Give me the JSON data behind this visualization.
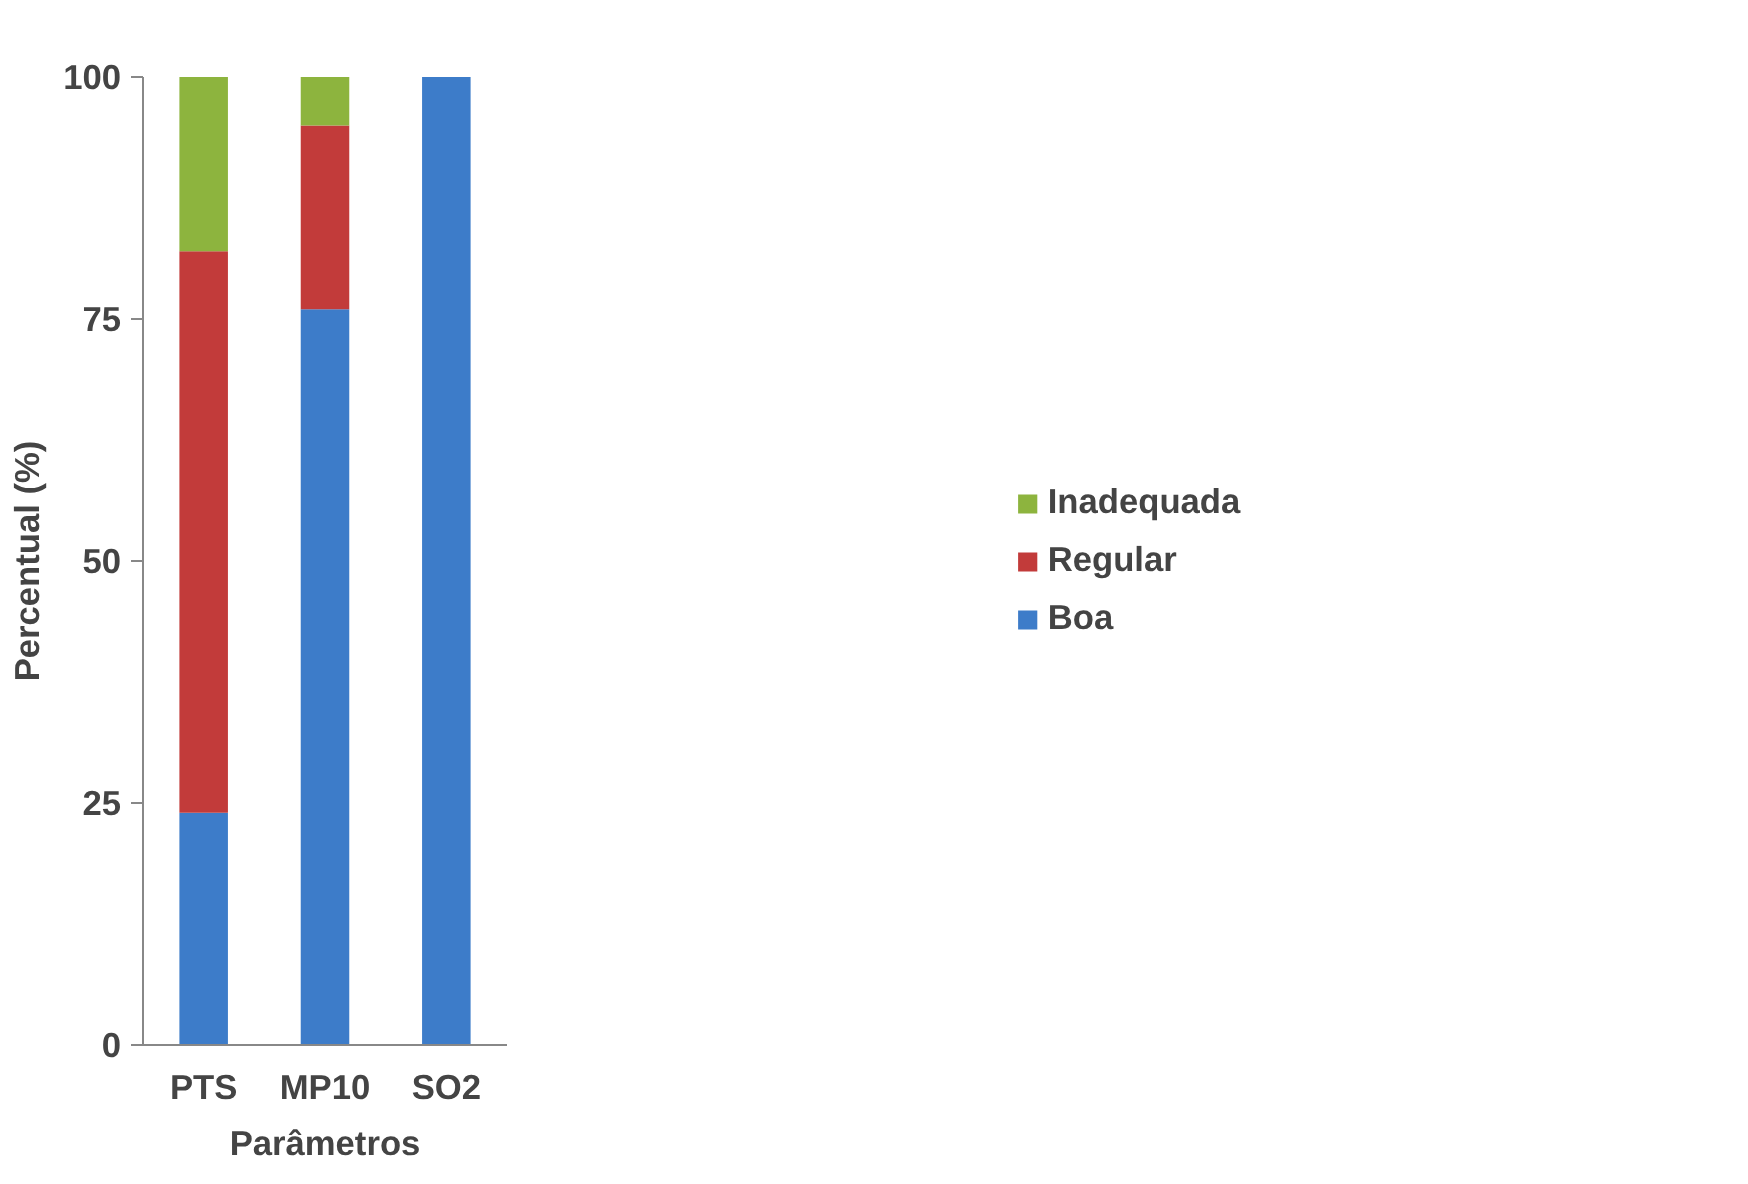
{
  "chart_data": {
    "type": "bar",
    "stacked": true,
    "xlabel": "Parâmetros",
    "ylabel": "Percentual (%)",
    "categories": [
      "PTS",
      "MP10",
      "SO2"
    ],
    "series": [
      {
        "name": "Boa",
        "color": "#3d7cc9",
        "values": [
          24,
          76,
          100
        ]
      },
      {
        "name": "Regular",
        "color": "#c23b3a",
        "values": [
          58,
          19,
          0
        ]
      },
      {
        "name": "Inadequada",
        "color": "#8db43e",
        "values": [
          18,
          5,
          0
        ]
      }
    ],
    "ylim": [
      0,
      100
    ],
    "yticks": [
      0,
      25,
      50,
      75,
      100
    ],
    "grid": false,
    "legend": "right"
  }
}
